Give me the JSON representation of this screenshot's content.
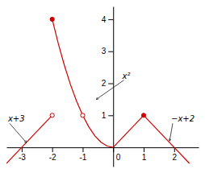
{
  "chart_data": {
    "type": "line",
    "color": "#cc0000",
    "grid": false,
    "xlim": [
      -3.5,
      2.8
    ],
    "ylim": [
      -0.6,
      4.4
    ],
    "xticks": [
      -3,
      -2,
      -1,
      0,
      1,
      2
    ],
    "yticks": [
      1,
      2,
      3,
      4
    ],
    "series": [
      {
        "x": [
          -3.5,
          -3
        ],
        "values": [
          -0.5,
          0
        ]
      },
      {
        "x": [
          -3,
          -2
        ],
        "values": [
          0,
          1
        ]
      },
      {
        "x": [
          -2,
          -1.8,
          -1.6,
          -1.4,
          -1.2,
          -1.0,
          -0.8,
          -0.6,
          -0.4,
          -0.2,
          0.0
        ],
        "values": [
          4,
          3.24,
          2.56,
          1.96,
          1.44,
          1.0,
          0.64,
          0.36,
          0.16,
          0.04,
          0.0
        ]
      },
      {
        "x": [
          0,
          1
        ],
        "values": [
          0,
          1
        ]
      },
      {
        "x": [
          1,
          2
        ],
        "values": [
          1,
          0
        ]
      },
      {
        "x": [
          2,
          2.5
        ],
        "values": [
          0,
          -0.5
        ]
      },
      {
        "type": "scatter",
        "marker": "circle-open",
        "x": [
          -2,
          -1
        ],
        "values": [
          1,
          1
        ]
      },
      {
        "type": "scatter",
        "marker": "circle",
        "x": [
          -2,
          1
        ],
        "values": [
          4,
          1
        ]
      }
    ],
    "annotations": [
      {
        "text": "x²",
        "x": -0.55,
        "y": 1.5,
        "text_x": 0.3,
        "text_y": 2.1
      },
      {
        "text": "x+3",
        "x": -2.85,
        "y": 0.15,
        "text_x": -3.45,
        "text_y": 0.75
      },
      {
        "text": "−x+2",
        "x": 1.85,
        "y": 0.2,
        "text_x": 1.9,
        "text_y": 0.75
      }
    ]
  }
}
